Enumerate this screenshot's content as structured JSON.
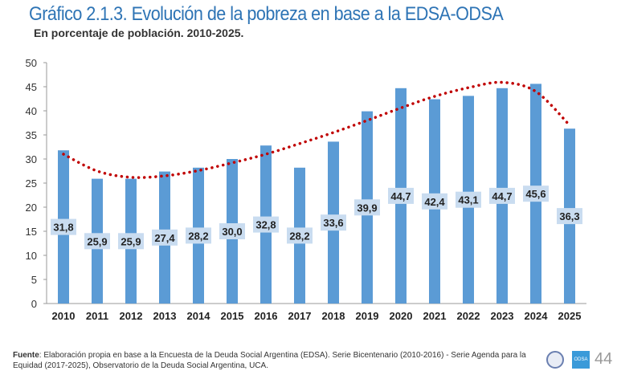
{
  "chart_data": {
    "type": "bar",
    "title": "Gráfico 2.1.3. Evolución de la pobreza en base a la EDSA-ODSA",
    "subtitle": "En porcentaje de población. 2010-2025.",
    "categories": [
      "2010",
      "2011",
      "2012",
      "2013",
      "2014",
      "2015",
      "2016",
      "2017",
      "2018",
      "2019",
      "2020",
      "2021",
      "2022",
      "2023",
      "2024",
      "2025"
    ],
    "values": [
      31.8,
      25.9,
      25.9,
      27.4,
      28.2,
      30.0,
      32.8,
      28.2,
      33.6,
      39.9,
      44.7,
      42.4,
      43.1,
      44.7,
      45.6,
      36.3
    ],
    "data_labels": [
      "31,8",
      "25,9",
      "25,9",
      "27,4",
      "28,2",
      "30,0",
      "32,8",
      "28,2",
      "33,6",
      "39,9",
      "44,7",
      "42,4",
      "43,1",
      "44,7",
      "45,6",
      "36,3"
    ],
    "trendline": {
      "style": "dotted",
      "color": "#c00000",
      "values": [
        31.0,
        27.5,
        26.2,
        26.5,
        27.6,
        29.2,
        31.0,
        33.2,
        35.5,
        38.0,
        40.6,
        43.0,
        44.8,
        45.9,
        44.0,
        37.0
      ]
    },
    "ylim": [
      0,
      50
    ],
    "yticks": [
      "0",
      "5",
      "10",
      "15",
      "20",
      "25",
      "30",
      "35",
      "40",
      "45",
      "50"
    ],
    "grid": false,
    "bar_color": "#5b9bd5",
    "label_bg": "#c9dcf0"
  },
  "footer": {
    "source_label": "Fuente",
    "source_text": ": Elaboración propia en base a la Encuesta de la Deuda Social Argentina (EDSA). Serie Bicentenario (2010-2016) - Serie Agenda para la Equidad (2017-2025), Observatorio de la Deuda Social Argentina, UCA.",
    "logo_text": "ODSA",
    "page": "44"
  }
}
